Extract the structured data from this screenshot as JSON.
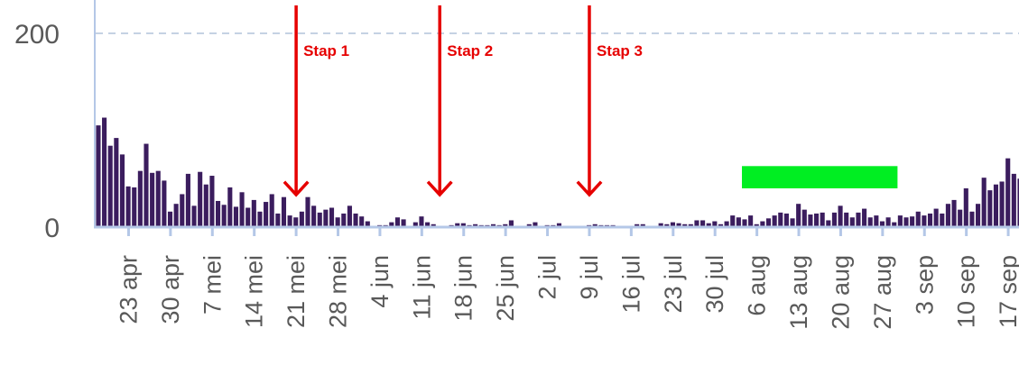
{
  "chart_data": {
    "type": "bar",
    "start_date": "2020-04-18",
    "values": [
      105,
      113,
      84,
      92,
      75,
      42,
      41,
      58,
      86,
      56,
      58,
      48,
      16,
      24,
      34,
      55,
      22,
      57,
      44,
      53,
      27,
      23,
      41,
      21,
      36,
      20,
      28,
      16,
      26,
      34,
      14,
      31,
      12,
      10,
      16,
      31,
      22,
      15,
      18,
      20,
      10,
      14,
      22,
      14,
      11,
      6,
      1,
      2,
      2,
      5,
      10,
      8,
      1,
      5,
      11,
      5,
      3,
      0,
      0,
      2,
      4,
      4,
      2,
      3,
      2,
      2,
      3,
      2,
      3,
      7,
      0,
      0,
      3,
      5,
      0,
      2,
      2,
      4,
      0,
      0,
      0,
      0,
      2,
      3,
      2,
      2,
      2,
      0,
      0,
      0,
      3,
      3,
      0,
      0,
      4,
      3,
      5,
      4,
      3,
      3,
      7,
      7,
      4,
      6,
      3,
      6,
      12,
      10,
      8,
      12,
      3,
      6,
      9,
      12,
      15,
      14,
      9,
      24,
      18,
      13,
      14,
      15,
      7,
      15,
      22,
      15,
      10,
      15,
      19,
      10,
      12,
      6,
      10,
      5,
      12,
      10,
      11,
      16,
      12,
      14,
      19,
      14,
      24,
      28,
      18,
      40,
      16,
      24,
      51,
      38,
      44,
      47,
      71,
      55,
      50
    ],
    "ylim": [
      0,
      230
    ],
    "y_ticks": [
      {
        "value": 0,
        "label": "0"
      },
      {
        "value": 200,
        "label": "200"
      }
    ],
    "x_ticks": [
      {
        "date": "2020-04-23",
        "label": "23 apr"
      },
      {
        "date": "2020-04-30",
        "label": "30 apr"
      },
      {
        "date": "2020-05-07",
        "label": "7 mei"
      },
      {
        "date": "2020-05-14",
        "label": "14 mei"
      },
      {
        "date": "2020-05-21",
        "label": "21 mei"
      },
      {
        "date": "2020-05-28",
        "label": "28 mei"
      },
      {
        "date": "2020-06-04",
        "label": "4 jun"
      },
      {
        "date": "2020-06-11",
        "label": "11 jun"
      },
      {
        "date": "2020-06-18",
        "label": "18 jun"
      },
      {
        "date": "2020-06-25",
        "label": "25 jun"
      },
      {
        "date": "2020-07-02",
        "label": "2 jul"
      },
      {
        "date": "2020-07-09",
        "label": "9 jul"
      },
      {
        "date": "2020-07-16",
        "label": "16 jul"
      },
      {
        "date": "2020-07-23",
        "label": "23 jul"
      },
      {
        "date": "2020-07-30",
        "label": "30 jul"
      },
      {
        "date": "2020-08-06",
        "label": "6 aug"
      },
      {
        "date": "2020-08-13",
        "label": "13 aug"
      },
      {
        "date": "2020-08-20",
        "label": "20 aug"
      },
      {
        "date": "2020-08-27",
        "label": "27 aug"
      },
      {
        "date": "2020-09-03",
        "label": "3 sep"
      },
      {
        "date": "2020-09-10",
        "label": "10 sep"
      },
      {
        "date": "2020-09-17",
        "label": "17 sep"
      }
    ],
    "gridline": {
      "value": 200,
      "style": "dashed"
    },
    "colors": {
      "bars": "#3b1d5e",
      "axis": "#b4c7e7",
      "gridline": "#c5d2e3",
      "tick_text": "#595959",
      "annotation": "#e60000",
      "highlight": "#00ee22"
    },
    "annotations": [
      {
        "label": "Stap 1",
        "date": "2020-05-21"
      },
      {
        "label": "Stap 2",
        "date": "2020-06-14"
      },
      {
        "label": "Stap 3",
        "date": "2020-07-09"
      }
    ],
    "highlight_bar": {
      "start_date": "2020-08-04",
      "end_date": "2020-08-30",
      "y_from": 40,
      "y_to": 63
    }
  }
}
